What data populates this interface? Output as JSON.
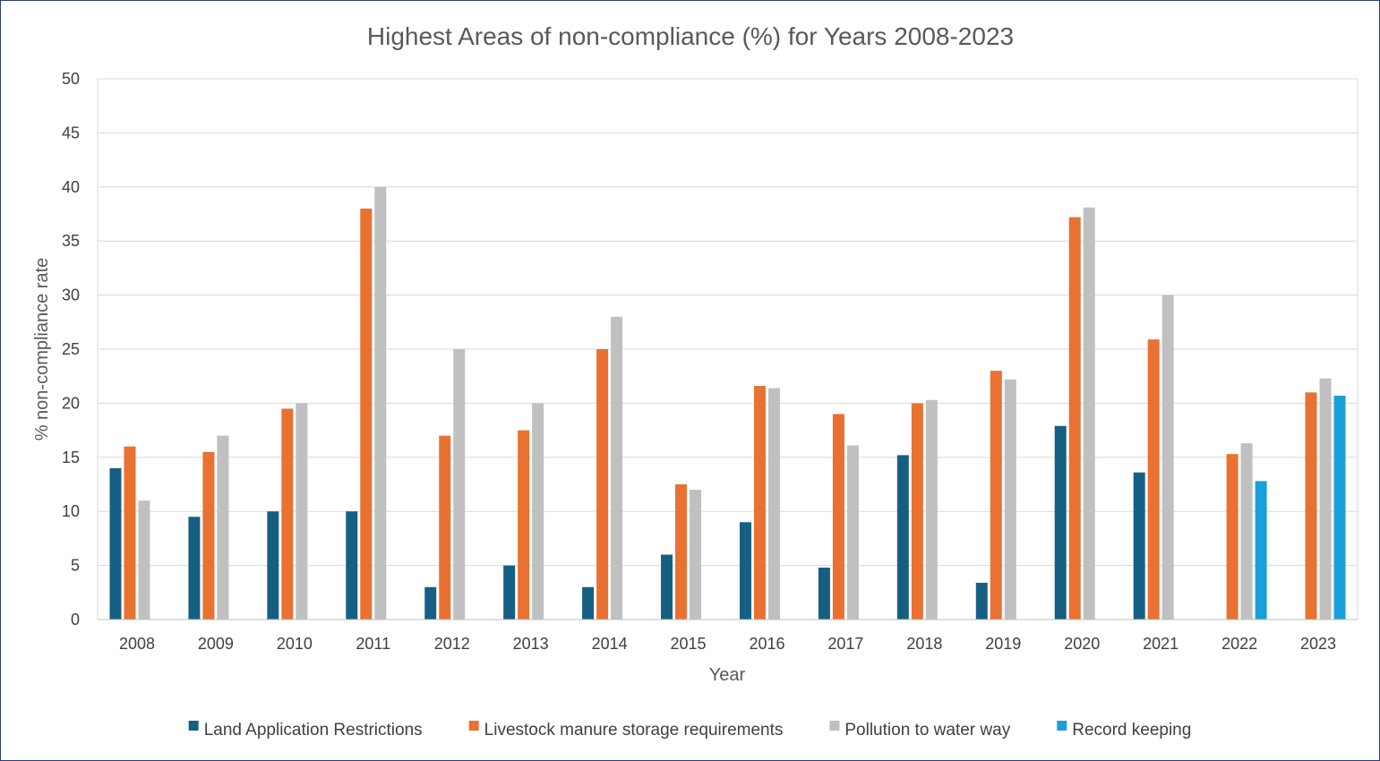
{
  "chart_data": {
    "type": "bar",
    "title": "Highest Areas of non-compliance (%) for Years 2008-2023",
    "xlabel": "Year",
    "ylabel": "% non-compliance rate",
    "ylim": [
      0,
      50
    ],
    "yticks": [
      0,
      5,
      10,
      15,
      20,
      25,
      30,
      35,
      40,
      45,
      50
    ],
    "grid": true,
    "legend_position": "bottom",
    "categories": [
      "2008",
      "2009",
      "2010",
      "2011",
      "2012",
      "2013",
      "2014",
      "2015",
      "2016",
      "2017",
      "2018",
      "2019",
      "2020",
      "2021",
      "2022",
      "2023"
    ],
    "series": [
      {
        "name": "Land Application Restrictions",
        "color": "#156082",
        "values": [
          14,
          9.5,
          10,
          10,
          3,
          5,
          3,
          6,
          9,
          4.8,
          15.2,
          3.4,
          17.9,
          13.6,
          null,
          null
        ]
      },
      {
        "name": "Livestock manure storage requirements",
        "color": "#E97132",
        "values": [
          16,
          15.5,
          19.5,
          38,
          17,
          17.5,
          25,
          12.5,
          21.6,
          19,
          20,
          23,
          37.2,
          25.9,
          15.3,
          21
        ]
      },
      {
        "name": "Pollution to water way",
        "color": "#C0C0C0",
        "values": [
          11,
          17,
          20,
          40,
          25,
          20,
          28,
          12,
          21.4,
          16.1,
          20.3,
          22.2,
          38.1,
          30,
          16.3,
          22.3
        ]
      },
      {
        "name": "Record keeping",
        "color": "#1AA0D8",
        "values": [
          null,
          null,
          null,
          null,
          null,
          null,
          null,
          null,
          null,
          null,
          null,
          null,
          null,
          null,
          12.8,
          20.7
        ]
      }
    ]
  }
}
